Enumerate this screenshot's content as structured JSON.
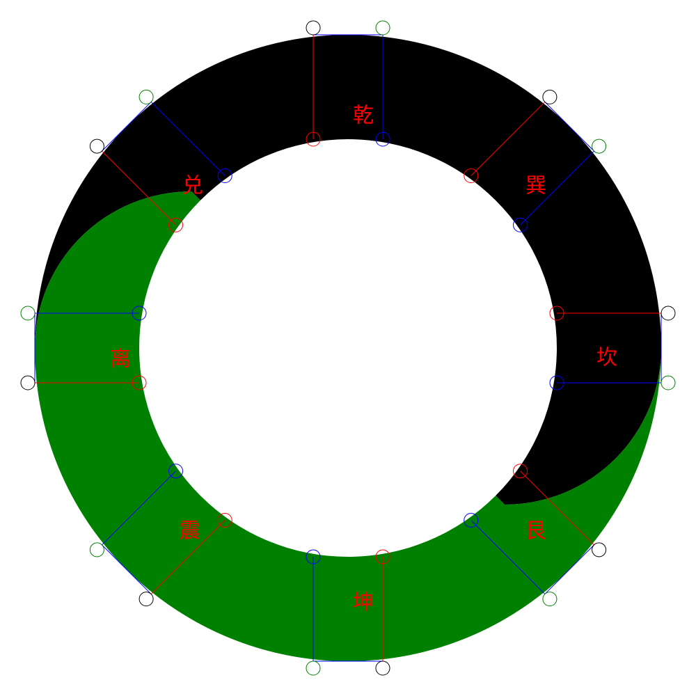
{
  "colors": {
    "background": "#ffffff",
    "yang": "#000000",
    "yin": "#008000",
    "label": "#ff0000",
    "marker_red": "#ff0000",
    "marker_blue": "#0000ff",
    "marker_green": "#008000",
    "marker_black": "#000000"
  },
  "trigrams": [
    {
      "id": "qian",
      "label": "乾"
    },
    {
      "id": "xun",
      "label": "巽"
    },
    {
      "id": "kan",
      "label": "坎"
    },
    {
      "id": "gen",
      "label": "艮"
    },
    {
      "id": "kun",
      "label": "坤"
    },
    {
      "id": "zhen",
      "label": "震"
    },
    {
      "id": "li",
      "label": "离"
    },
    {
      "id": "dui",
      "label": "兑"
    }
  ]
}
